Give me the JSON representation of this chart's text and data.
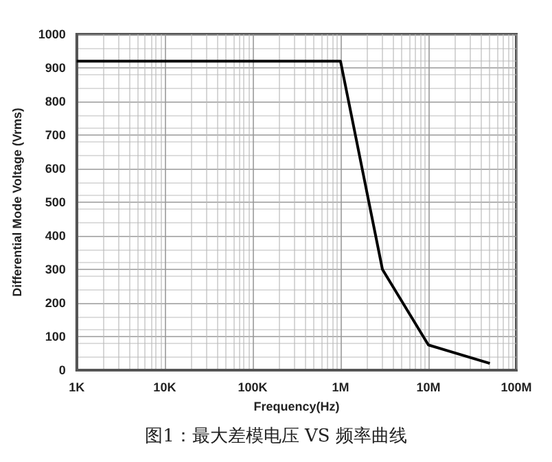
{
  "chart_data": {
    "type": "line",
    "xlabel": "Frequency(Hz)",
    "ylabel": "Differential Mode Voltage (Vrms)",
    "annotations": [
      "图1：最大差模电压 VS 频率曲线"
    ],
    "series": [
      {
        "color": "#000000",
        "x": [
          1000,
          1000000,
          3000000,
          10000000,
          50000000
        ],
        "values": [
          920,
          920,
          300,
          75,
          20
        ]
      }
    ],
    "log": "x",
    "xlim": [
      1000,
      100000000
    ],
    "ylim": [
      0,
      1000
    ],
    "xticks": [
      {
        "value": 1000,
        "label": "1K"
      },
      {
        "value": 10000,
        "label": "10K"
      },
      {
        "value": 100000,
        "label": "100K"
      },
      {
        "value": 1000000,
        "label": "1M"
      },
      {
        "value": 10000000,
        "label": "10M"
      },
      {
        "value": 100000000,
        "label": "100M"
      }
    ],
    "yticks": [
      0,
      100,
      200,
      300,
      400,
      500,
      600,
      700,
      800,
      900,
      1000
    ],
    "grid": true,
    "marker": "none",
    "line_style": "solid"
  }
}
